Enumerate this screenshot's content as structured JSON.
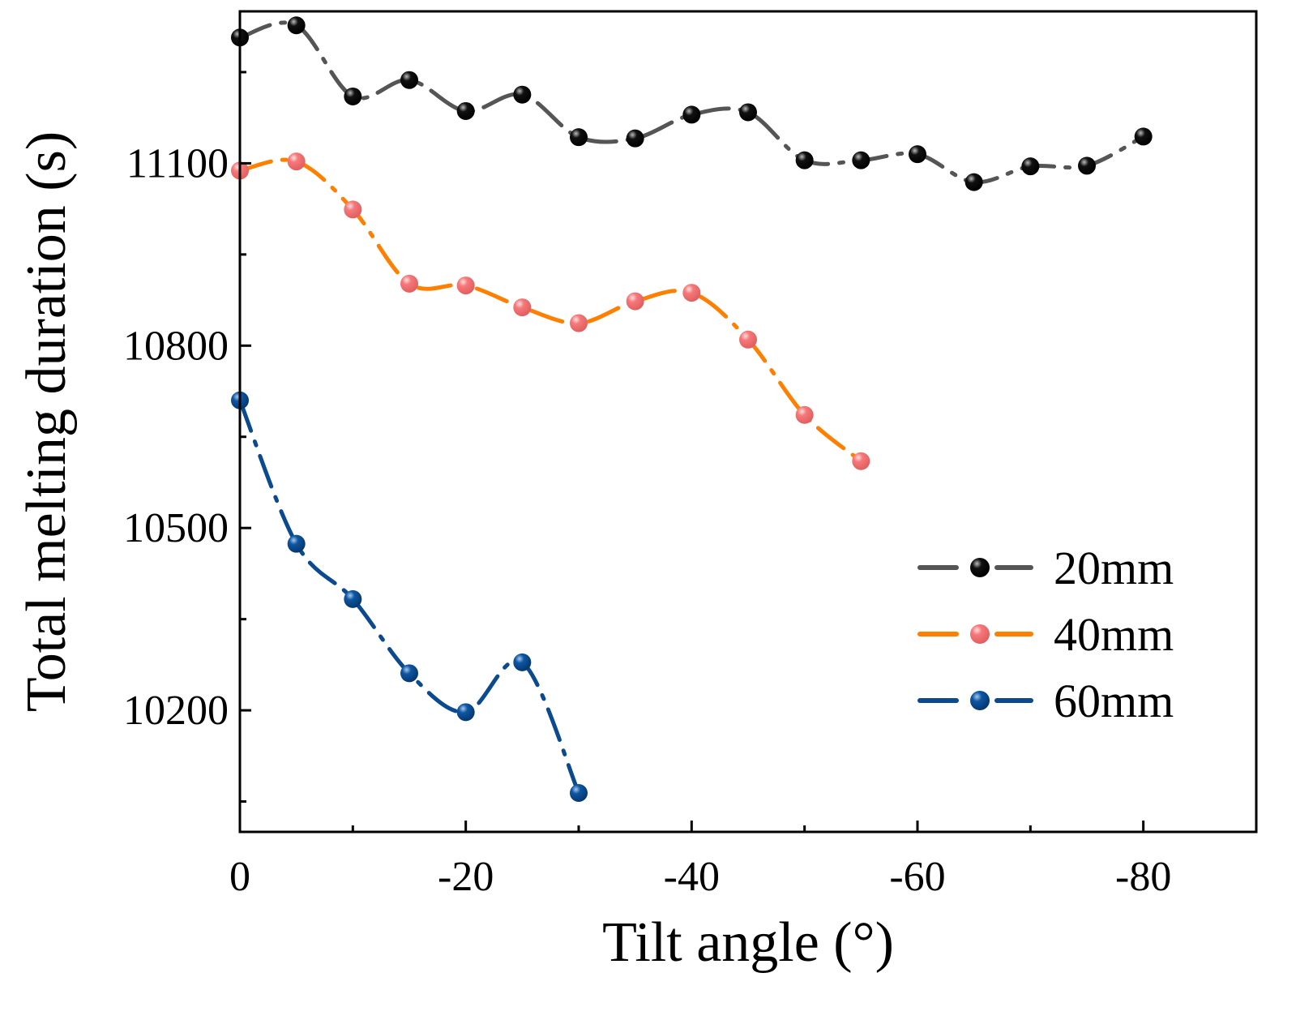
{
  "chart_data": {
    "type": "line",
    "title": "",
    "xlabel": "Tilt angle (°)",
    "ylabel": "Total melting duration (s)",
    "xlim": [
      0,
      -90
    ],
    "ylim": [
      10000,
      11350
    ],
    "xticks": [
      0,
      -20,
      -40,
      -60,
      -80
    ],
    "xtick_labels": [
      "0",
      "-20",
      "-40",
      "-60",
      "-80"
    ],
    "yticks": [
      10200,
      10500,
      10800,
      11100
    ],
    "ytick_labels": [
      "10200",
      "10500",
      "10800",
      "11100"
    ],
    "grid": false,
    "legend_position": "bottom-right",
    "series": [
      {
        "name": "20mm",
        "line_color": "#555555",
        "marker_color": "#111111",
        "x": [
          0,
          -5,
          -10,
          -15,
          -20,
          -25,
          -30,
          -35,
          -40,
          -45,
          -50,
          -55,
          -60,
          -65,
          -70,
          -75,
          -80
        ],
        "y": [
          11307,
          11327,
          11210,
          11237,
          11186,
          11213,
          11143,
          11141,
          11180,
          11184,
          11105,
          11105,
          11115,
          11069,
          11095,
          11096,
          11144
        ]
      },
      {
        "name": "40mm",
        "line_color": "#ff8000",
        "marker_color": "#f7787a",
        "x": [
          0,
          -5,
          -10,
          -15,
          -20,
          -25,
          -30,
          -35,
          -40,
          -45,
          -50,
          -55
        ],
        "y": [
          11088,
          11103,
          11024,
          10902,
          10899,
          10863,
          10837,
          10873,
          10887,
          10810,
          10686,
          10610
        ]
      },
      {
        "name": "60mm",
        "line_color": "#0b4a8f",
        "marker_color": "#0d56a3",
        "x": [
          0,
          -5,
          -10,
          -15,
          -20,
          -25,
          -30
        ],
        "y": [
          10710,
          10474,
          10383,
          10261,
          10197,
          10279,
          10064
        ]
      }
    ]
  }
}
